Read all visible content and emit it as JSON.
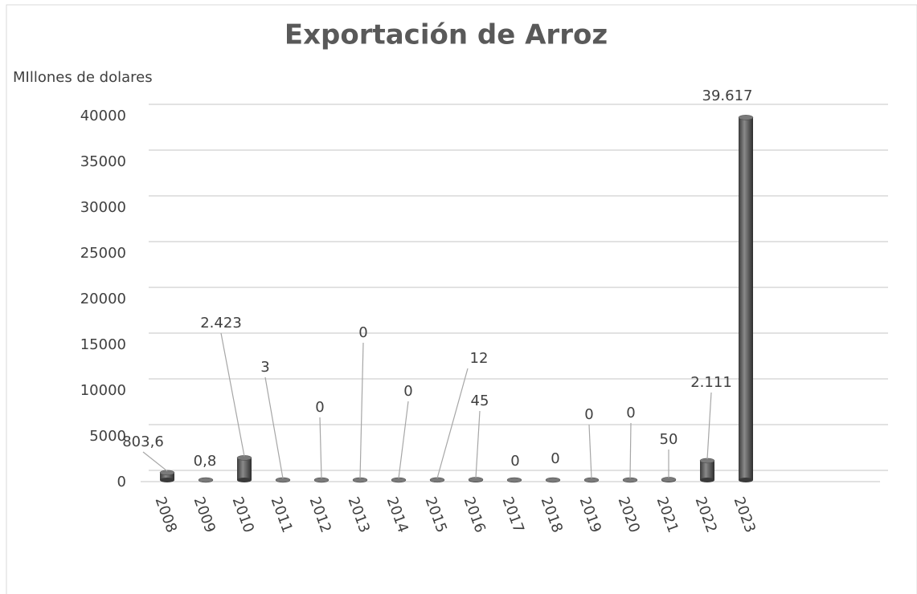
{
  "chart_data": {
    "type": "bar",
    "title": "Exportación de Arroz",
    "y_axis_label": "MIllones de dolares",
    "categories": [
      "2008",
      "2009",
      "2010",
      "2011",
      "2012",
      "2013",
      "2014",
      "2015",
      "2016",
      "2017",
      "2018",
      "2019",
      "2020",
      "2021",
      "2022",
      "2023"
    ],
    "values": [
      803.6,
      0.8,
      2423,
      3,
      0,
      0,
      0,
      12,
      45,
      0,
      0,
      0,
      0,
      50,
      2111,
      39617
    ],
    "value_labels": [
      "803,6",
      "0,8",
      "2.423",
      "3",
      "0",
      "0",
      "0",
      "12",
      "45",
      "0",
      "0",
      "0",
      "0",
      "50",
      "2.111",
      "39.617"
    ],
    "color": "#5a5a5a",
    "ylim": [
      0,
      40000
    ],
    "yticks": [
      0,
      5000,
      10000,
      15000,
      20000,
      25000,
      30000,
      35000,
      40000
    ],
    "grid": true
  }
}
